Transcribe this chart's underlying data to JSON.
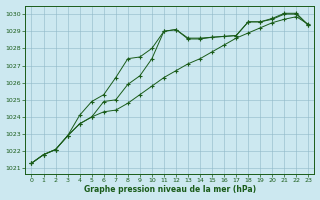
{
  "title": "Graphe pression niveau de la mer (hPa)",
  "bg_color": "#cce8f0",
  "grid_color": "#90b8c8",
  "line_color": "#1a5c1a",
  "xlim": [
    -0.5,
    23.5
  ],
  "ylim": [
    1020.7,
    1030.5
  ],
  "yticks": [
    1021,
    1022,
    1023,
    1024,
    1025,
    1026,
    1027,
    1028,
    1029,
    1030
  ],
  "xticks": [
    0,
    1,
    2,
    3,
    4,
    5,
    6,
    7,
    8,
    9,
    10,
    11,
    12,
    13,
    14,
    15,
    16,
    17,
    18,
    19,
    20,
    21,
    22,
    23
  ],
  "series1_x": [
    0,
    1,
    2,
    3,
    4,
    5,
    6,
    7,
    8,
    9,
    10,
    11,
    12,
    13,
    14,
    15,
    16,
    17,
    18,
    19,
    20,
    21,
    22,
    23
  ],
  "series1_y": [
    1021.3,
    1021.8,
    1022.1,
    1022.9,
    1023.6,
    1024.0,
    1024.3,
    1024.4,
    1024.8,
    1025.3,
    1025.8,
    1026.3,
    1026.7,
    1027.1,
    1027.4,
    1027.8,
    1028.2,
    1028.6,
    1028.9,
    1029.2,
    1029.5,
    1029.7,
    1029.85,
    1029.4
  ],
  "series2_x": [
    0,
    1,
    2,
    3,
    4,
    5,
    6,
    7,
    8,
    9,
    10,
    11,
    12,
    13,
    14,
    15,
    16,
    17,
    18,
    19,
    20,
    21,
    22,
    23
  ],
  "series2_y": [
    1021.3,
    1021.8,
    1022.1,
    1022.9,
    1024.1,
    1024.9,
    1025.3,
    1026.3,
    1027.4,
    1027.5,
    1028.0,
    1029.0,
    1029.1,
    1028.55,
    1028.55,
    1028.65,
    1028.7,
    1028.75,
    1029.55,
    1029.55,
    1029.7,
    1030.0,
    1030.0,
    1029.35
  ],
  "series3_x": [
    0,
    1,
    2,
    3,
    4,
    5,
    6,
    7,
    8,
    9,
    10,
    11,
    12,
    13,
    14,
    15,
    16,
    17,
    18,
    19,
    20,
    21,
    22,
    23
  ],
  "series3_y": [
    1021.3,
    1021.8,
    1022.1,
    1022.9,
    1023.6,
    1024.0,
    1024.9,
    1025.0,
    1025.9,
    1026.4,
    1027.4,
    1029.0,
    1029.1,
    1028.6,
    1028.6,
    1028.65,
    1028.7,
    1028.75,
    1029.55,
    1029.55,
    1029.75,
    1030.05,
    1030.05,
    1029.35
  ]
}
